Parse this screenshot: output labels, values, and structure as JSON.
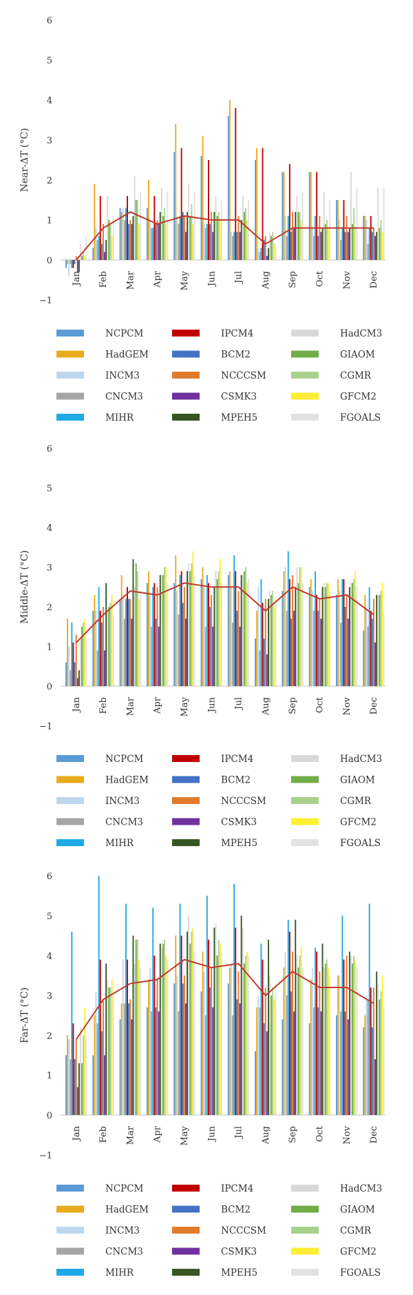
{
  "models": [
    {
      "name": "NCPCM",
      "color": "#5b9bd5"
    },
    {
      "name": "HadGEM",
      "color": "#e8ab1e"
    },
    {
      "name": "INCM3",
      "color": "#bdd7ee"
    },
    {
      "name": "CNCM3",
      "color": "#a5a5a5"
    },
    {
      "name": "MIHR",
      "color": "#1fa9e6"
    },
    {
      "name": "IPCM4",
      "color": "#c00000"
    },
    {
      "name": "BCM2",
      "color": "#4472c4"
    },
    {
      "name": "NCCCSM",
      "color": "#e07b2c"
    },
    {
      "name": "CSMK3",
      "color": "#7030a0"
    },
    {
      "name": "MPEH5",
      "color": "#375623"
    },
    {
      "name": "HadCM3",
      "color": "#d9d9d9"
    },
    {
      "name": "GIAOM",
      "color": "#70ad47"
    },
    {
      "name": "CGMR",
      "color": "#a9d18e"
    },
    {
      "name": "GFCM2",
      "color": "#ffee33"
    },
    {
      "name": "FGOALS",
      "color": "#e2e2e2"
    }
  ],
  "mean_line_color": "#c0392b",
  "chart_data": [
    {
      "type": "bar",
      "ylabel": "Near-ΔT (°C)",
      "ylim": [
        -1,
        6
      ],
      "yticks": [
        "−1",
        "0",
        "1",
        "2",
        "3",
        "4",
        "5",
        "6"
      ],
      "categories": [
        "Jan",
        "Feb",
        "Mar",
        "Apr",
        "May",
        "Jun",
        "Jul",
        "Aug",
        "Sep",
        "Oct",
        "Nov",
        "Dec"
      ],
      "series_order": [
        "NCPCM",
        "HadGEM",
        "INCM3",
        "CNCM3",
        "MIHR",
        "IPCM4",
        "BCM2",
        "NCCCSM",
        "CSMK3",
        "MPEH5",
        "HadCM3",
        "GIAOM",
        "CGMR",
        "GFCM2",
        "FGOALS"
      ],
      "values": [
        [
          -0.2,
          -0.1,
          -0.4,
          -0.1,
          -0.2,
          -0.2,
          -0.1,
          0.1,
          -0.3,
          -0.3,
          0.4,
          0.1,
          0.2,
          0.1,
          0.6
        ],
        [
          0.3,
          1.9,
          0.8,
          0.5,
          0.6,
          1.6,
          0.4,
          0.9,
          0.2,
          0.5,
          1.6,
          1.0,
          0.9,
          0.6,
          1.1
        ],
        [
          1.3,
          1.2,
          1.3,
          1.0,
          1.3,
          1.6,
          0.9,
          1.0,
          0.9,
          1.1,
          2.1,
          1.5,
          1.5,
          0.9,
          1.7
        ],
        [
          1.3,
          2.0,
          1.0,
          0.8,
          0.8,
          1.6,
          0.9,
          1.0,
          0.9,
          1.2,
          1.8,
          1.1,
          1.3,
          0.9,
          1.7
        ],
        [
          2.7,
          3.4,
          1.1,
          0.9,
          1.1,
          2.8,
          1.2,
          1.1,
          0.7,
          1.2,
          1.9,
          1.1,
          1.4,
          0.9,
          1.7
        ],
        [
          2.6,
          3.1,
          0.9,
          0.8,
          0.9,
          2.5,
          0.9,
          1.2,
          0.7,
          1.2,
          1.6,
          1.1,
          1.2,
          1.0,
          1.5
        ],
        [
          3.6,
          4.0,
          0.7,
          0.6,
          0.7,
          3.8,
          0.7,
          1.1,
          0.7,
          1.0,
          1.6,
          1.2,
          1.3,
          1.0,
          1.5
        ],
        [
          2.5,
          2.8,
          0.3,
          0.2,
          0.3,
          2.8,
          0.5,
          0.6,
          0.1,
          0.3,
          0.7,
          0.6,
          0.7,
          0.4,
          0.4
        ],
        [
          2.2,
          2.2,
          1.1,
          0.6,
          1.1,
          2.4,
          0.7,
          1.2,
          0.8,
          1.2,
          1.6,
          1.2,
          1.2,
          1.0,
          1.7
        ],
        [
          2.2,
          2.2,
          0.8,
          0.6,
          1.1,
          2.2,
          0.6,
          1.1,
          0.7,
          0.8,
          1.7,
          0.9,
          1.0,
          0.8,
          1.5
        ],
        [
          1.5,
          1.5,
          1.0,
          0.5,
          0.8,
          1.5,
          0.7,
          1.1,
          0.7,
          0.8,
          2.2,
          0.9,
          1.3,
          0.8,
          1.8
        ],
        [
          1.1,
          1.1,
          1.0,
          0.4,
          0.8,
          1.1,
          0.7,
          0.8,
          0.6,
          0.7,
          1.8,
          0.8,
          1.0,
          0.7,
          1.8
        ]
      ],
      "mean": [
        0.0,
        0.8,
        1.2,
        0.9,
        1.1,
        1.0,
        1.0,
        0.4,
        0.8,
        0.8,
        0.8,
        0.8
      ]
    },
    {
      "type": "bar",
      "ylabel": "Middle-ΔT (°C)",
      "ylim": [
        -1,
        6
      ],
      "yticks": [
        "−1",
        "0",
        "1",
        "2",
        "3",
        "4",
        "5",
        "6"
      ],
      "categories": [
        "Jan",
        "Feb",
        "Mar",
        "Apr",
        "May",
        "Jun",
        "Jul",
        "Aug",
        "Sep",
        "Oct",
        "Nov",
        "Dec"
      ],
      "series_order": [
        "NCPCM",
        "HadGEM",
        "INCM3",
        "CNCM3",
        "MIHR",
        "IPCM4",
        "BCM2",
        "NCCCSM",
        "CSMK3",
        "MPEH5",
        "HadCM3",
        "GIAOM",
        "CGMR",
        "GFCM2",
        "FGOALS"
      ],
      "values": [
        [
          0.6,
          1.7,
          1.0,
          0.4,
          1.6,
          1.1,
          0.6,
          1.3,
          0.2,
          0.4,
          1.2,
          1.5,
          1.6,
          1.7,
          1.2
        ],
        [
          1.9,
          2.3,
          1.9,
          0.9,
          2.5,
          1.9,
          1.6,
          2.0,
          0.9,
          2.6,
          1.9,
          2.0,
          2.1,
          2.3,
          1.8
        ],
        [
          2.2,
          2.8,
          2.3,
          1.7,
          2.2,
          2.5,
          2.2,
          2.2,
          1.7,
          3.2,
          2.5,
          3.1,
          2.9,
          2.2,
          2.4
        ],
        [
          2.6,
          2.9,
          2.3,
          1.5,
          2.5,
          2.6,
          1.7,
          2.5,
          1.5,
          2.8,
          2.8,
          2.8,
          3.0,
          3.0,
          2.6
        ],
        [
          2.6,
          3.3,
          2.4,
          1.8,
          2.8,
          2.9,
          2.1,
          2.5,
          1.7,
          2.9,
          3.1,
          2.9,
          3.1,
          3.4,
          2.8
        ],
        [
          2.7,
          3.0,
          2.5,
          1.5,
          2.8,
          2.6,
          2.0,
          2.3,
          1.5,
          2.5,
          2.9,
          2.7,
          2.9,
          3.2,
          2.6
        ],
        [
          2.8,
          2.9,
          2.5,
          1.6,
          3.3,
          2.9,
          1.9,
          2.4,
          1.5,
          2.8,
          2.8,
          2.9,
          3.0,
          2.6,
          2.7
        ],
        [
          1.2,
          1.9,
          2.5,
          0.9,
          2.7,
          2.1,
          1.2,
          2.2,
          0.8,
          2.2,
          2.4,
          2.3,
          2.4,
          2.0,
          2.2
        ],
        [
          2.4,
          2.9,
          3.0,
          1.9,
          3.4,
          2.7,
          1.7,
          2.8,
          1.9,
          2.5,
          3.0,
          2.6,
          3.0,
          3.0,
          2.6
        ],
        [
          2.5,
          2.7,
          2.4,
          1.9,
          2.9,
          2.3,
          1.9,
          2.2,
          1.7,
          2.5,
          2.6,
          2.5,
          2.6,
          2.6,
          2.4
        ],
        [
          2.3,
          2.7,
          2.4,
          1.6,
          2.7,
          2.7,
          2.0,
          2.3,
          1.7,
          2.5,
          2.6,
          2.6,
          2.7,
          2.9,
          2.5
        ],
        [
          1.4,
          2.3,
          2.0,
          1.5,
          2.5,
          1.9,
          1.7,
          2.2,
          1.1,
          2.3,
          2.3,
          2.3,
          2.4,
          2.6,
          1.8
        ]
      ],
      "mean": [
        1.1,
        1.8,
        2.4,
        2.3,
        2.6,
        2.5,
        2.5,
        1.9,
        2.5,
        2.2,
        2.3,
        1.8
      ]
    },
    {
      "type": "bar",
      "ylabel": "Far-ΔT (°C)",
      "ylim": [
        -1,
        6
      ],
      "yticks": [
        "−1",
        "0",
        "1",
        "2",
        "3",
        "4",
        "5",
        "6"
      ],
      "categories": [
        "Jan",
        "Feb",
        "Mar",
        "Apr",
        "May",
        "Jun",
        "Jul",
        "Aug",
        "Sep",
        "Oct",
        "Nov",
        "Dec"
      ],
      "series_order": [
        "NCPCM",
        "HadGEM",
        "INCM3",
        "CNCM3",
        "MIHR",
        "IPCM4",
        "BCM2",
        "NCCCSM",
        "CSMK3",
        "MPEH5",
        "HadCM3",
        "GIAOM",
        "CGMR",
        "GFCM2",
        "FGOALS"
      ],
      "values": [
        [
          1.5,
          2.0,
          1.9,
          1.4,
          4.6,
          2.3,
          1.4,
          1.9,
          0.7,
          1.3,
          2.2,
          1.3,
          2.0,
          2.7,
          1.9
        ],
        [
          1.5,
          2.5,
          3.1,
          2.3,
          6.0,
          3.9,
          2.1,
          2.9,
          1.5,
          3.8,
          3.4,
          3.2,
          3.2,
          3.4,
          3.0
        ],
        [
          2.4,
          2.8,
          3.9,
          2.8,
          5.3,
          3.9,
          2.8,
          2.9,
          2.4,
          4.5,
          3.8,
          4.4,
          4.4,
          3.9,
          3.7
        ],
        [
          2.7,
          3.4,
          3.7,
          2.6,
          5.2,
          4.0,
          2.7,
          3.4,
          2.6,
          4.3,
          4.2,
          4.3,
          4.4,
          4.0,
          3.9
        ],
        [
          3.3,
          4.5,
          3.5,
          2.6,
          5.3,
          4.5,
          3.3,
          3.5,
          2.8,
          4.6,
          5.0,
          4.3,
          4.6,
          4.7,
          4.1
        ],
        [
          3.1,
          4.1,
          3.6,
          2.5,
          5.5,
          4.4,
          3.2,
          3.7,
          2.7,
          4.7,
          4.8,
          4.0,
          4.4,
          4.3,
          4.1
        ],
        [
          3.3,
          3.7,
          3.8,
          2.5,
          5.8,
          4.7,
          2.9,
          3.6,
          2.8,
          5.0,
          4.7,
          3.8,
          4.0,
          4.1,
          4.0
        ],
        [
          1.6,
          2.7,
          3.0,
          2.7,
          4.3,
          3.9,
          2.3,
          3.2,
          2.1,
          4.4,
          3.5,
          3.0,
          3.2,
          2.9,
          3.3
        ],
        [
          2.4,
          3.7,
          4.1,
          3.0,
          4.9,
          4.6,
          3.1,
          4.1,
          2.6,
          4.9,
          4.0,
          3.7,
          4.0,
          4.2,
          3.7
        ],
        [
          2.3,
          3.4,
          3.7,
          2.7,
          4.2,
          4.1,
          2.7,
          3.6,
          2.6,
          4.3,
          3.7,
          3.8,
          3.9,
          3.7,
          3.5
        ],
        [
          2.5,
          3.5,
          3.5,
          2.6,
          5.0,
          3.9,
          2.6,
          4.0,
          2.4,
          4.1,
          4.0,
          3.8,
          4.0,
          3.9,
          3.7
        ],
        [
          2.2,
          2.5,
          3.0,
          2.9,
          5.3,
          3.2,
          2.2,
          3.2,
          1.4,
          3.6,
          3.3,
          2.9,
          3.1,
          3.5,
          2.7
        ]
      ],
      "mean": [
        1.9,
        2.9,
        3.3,
        3.4,
        3.9,
        3.7,
        3.8,
        3.0,
        3.6,
        3.2,
        3.2,
        2.8
      ]
    }
  ]
}
